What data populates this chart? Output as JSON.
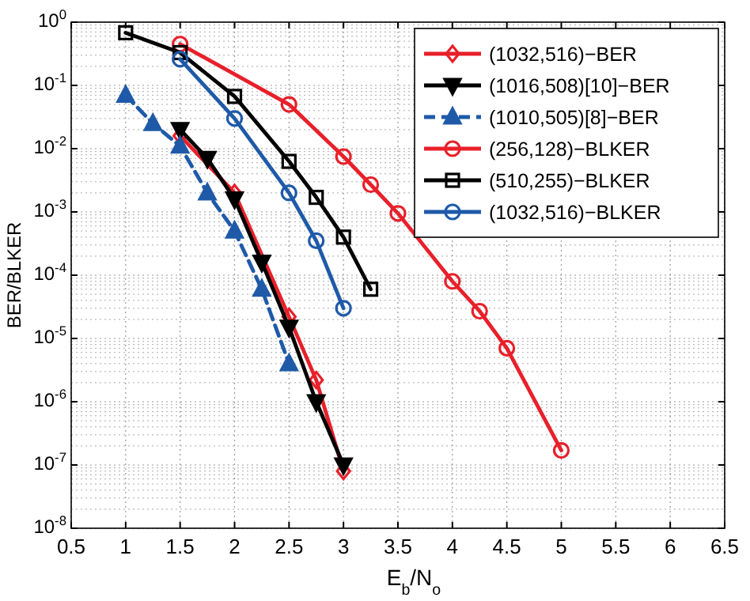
{
  "chart_data": {
    "type": "line",
    "xlabel": "E$_{b}$/N$_{o}$",
    "ylabel": "BER/BLKER",
    "log": "y",
    "grid": true,
    "legend": "top right",
    "xlim": [
      0.5,
      6.5
    ],
    "xticks": [
      0.5,
      1,
      1.5,
      2,
      2.5,
      3,
      3.5,
      4,
      4.5,
      5,
      5.5,
      6,
      6.5
    ],
    "ylim": [
      1e-08,
      1
    ],
    "yticks": [
      {
        "value": 1,
        "label": "10$^{0}$"
      },
      {
        "value": 0.1,
        "label": "10$^{-1}$"
      },
      {
        "value": 0.01,
        "label": "10$^{-2}$"
      },
      {
        "value": 0.001,
        "label": "10$^{-3}$"
      },
      {
        "value": 0.0001,
        "label": "10$^{-4}$"
      },
      {
        "value": 1e-05,
        "label": "10$^{-5}$"
      },
      {
        "value": 1e-06,
        "label": "10$^{-6}$"
      },
      {
        "value": 1e-07,
        "label": "10$^{-7}$"
      },
      {
        "value": 1e-08,
        "label": "10$^{-8}$"
      }
    ],
    "series": [
      {
        "name": "(1032,516)−BER",
        "color": "#e8202a",
        "marker": "diamond",
        "line_style": "solid",
        "x": [
          1.5,
          2,
          2.5,
          2.75,
          3
        ],
        "values": [
          0.016,
          0.002,
          2.2e-05,
          2.2e-06,
          8e-08
        ]
      },
      {
        "name": "(1016,508)[10]−BER",
        "color": "#000000",
        "marker": "triangle-down",
        "line_style": "solid",
        "x": [
          1.5,
          1.75,
          2,
          2.25,
          2.5,
          2.75,
          3
        ],
        "values": [
          0.02,
          0.007,
          0.0016,
          0.00016,
          1.5e-05,
          1e-06,
          1e-07
        ]
      },
      {
        "name": "(1010,505)[8]−BER",
        "color": "#1f5aa8",
        "marker": "triangle",
        "line_style": "dashed",
        "x": [
          1,
          1.25,
          1.5,
          1.75,
          2,
          2.25,
          2.5
        ],
        "values": [
          0.07,
          0.025,
          0.011,
          0.002,
          0.0005,
          6e-05,
          4e-06
        ]
      },
      {
        "name": "(256,128)−BLKER",
        "color": "#e8202a",
        "marker": "circle",
        "line_style": "solid",
        "x": [
          1.5,
          2.5,
          3,
          3.25,
          3.5,
          4,
          4.25,
          4.5,
          5
        ],
        "values": [
          0.45,
          0.05,
          0.0075,
          0.0027,
          0.00095,
          8e-05,
          2.7e-05,
          7e-06,
          1.7e-07
        ]
      },
      {
        "name": "(510,255)−BLKER",
        "color": "#000000",
        "marker": "square",
        "line_style": "solid",
        "x": [
          1,
          1.5,
          2,
          2.5,
          2.75,
          3,
          3.25
        ],
        "values": [
          0.68,
          0.33,
          0.067,
          0.0063,
          0.0017,
          0.0004,
          6e-05
        ]
      },
      {
        "name": "(1032,516)−BLKER",
        "color": "#1f5aa8",
        "marker": "circle",
        "line_style": "solid",
        "x": [
          1.5,
          2,
          2.5,
          2.75,
          3
        ],
        "values": [
          0.26,
          0.03,
          0.002,
          0.00035,
          3e-05
        ]
      }
    ]
  }
}
